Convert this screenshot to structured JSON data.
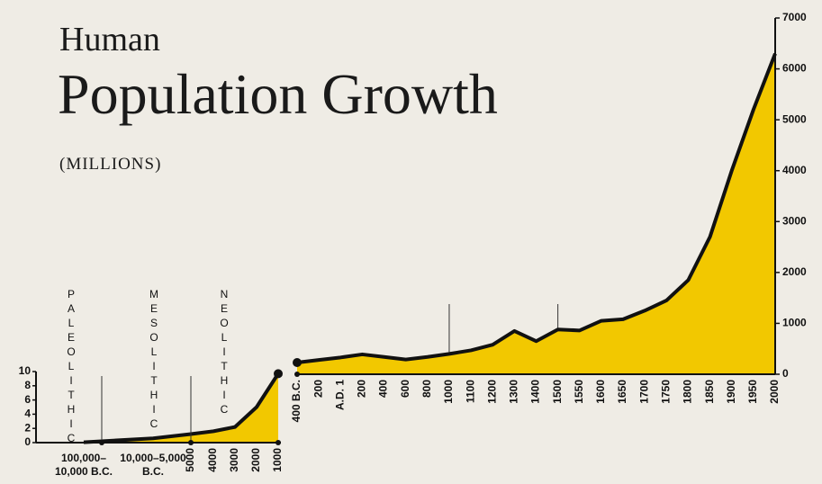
{
  "header": {
    "kicker": "Human",
    "title": "Population Growth",
    "subtitle": "(MILLIONS)"
  },
  "chart_data": [
    {
      "type": "area",
      "periods": [
        "PALEOLITHIC",
        "MESOLITHIC",
        "NEOLITHIC"
      ],
      "categories": [
        "100,000–10,000 B.C.",
        "10,000–5,000 B.C.",
        "5000",
        "4000",
        "3000",
        "2000",
        "1000"
      ],
      "values": [
        0.05,
        0.6,
        1.2,
        1.6,
        2.2,
        5,
        9.7
      ],
      "color": "#f2c800",
      "ylim": [
        0,
        10
      ],
      "yticks": [
        0,
        2,
        4,
        6,
        8,
        10
      ]
    },
    {
      "type": "area",
      "categories": [
        "400 B.C.",
        "200",
        "A.D. 1",
        "200",
        "400",
        "600",
        "800",
        "1000",
        "1100",
        "1200",
        "1300",
        "1400",
        "1500",
        "1550",
        "1600",
        "1650",
        "1700",
        "1750",
        "1800",
        "1850",
        "1900",
        "1950",
        "2000"
      ],
      "values": [
        230,
        280,
        330,
        390,
        340,
        290,
        340,
        400,
        470,
        580,
        850,
        650,
        880,
        860,
        1050,
        1080,
        1250,
        1450,
        1850,
        2700,
        4000,
        5200,
        6300
      ],
      "color": "#f2c800",
      "ylim": [
        0,
        7000
      ],
      "yticks": [
        0,
        1000,
        2000,
        3000,
        4000,
        5000,
        6000,
        7000
      ]
    }
  ]
}
